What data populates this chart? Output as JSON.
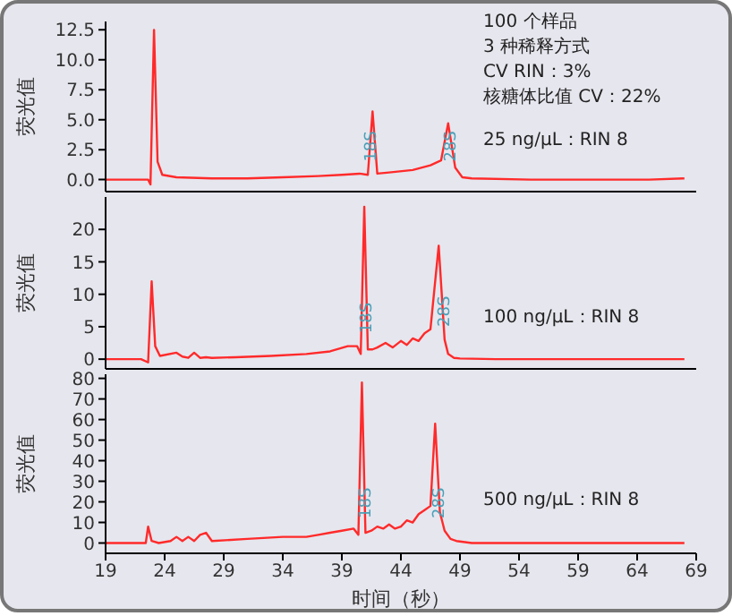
{
  "chart_data": [
    {
      "type": "line",
      "ylabel": "荧光值",
      "color": "#ff2a2a",
      "tick_labels": "y",
      "xlim": [
        19,
        69
      ],
      "xticks": [
        19,
        24,
        29,
        34,
        39,
        44,
        49,
        54,
        59,
        64,
        69
      ],
      "ylim": [
        -1,
        13.2
      ],
      "yticks": [
        {
          "value": 0,
          "label": "0.0"
        },
        2.5,
        {
          "value": 5,
          "label": "5.0"
        },
        7.5,
        {
          "value": 10,
          "label": "10.0"
        },
        12.5
      ],
      "x": [
        19,
        21,
        22.6,
        22.8,
        23.1,
        23.4,
        23.8,
        25,
        28,
        31,
        34,
        37,
        39,
        40.5,
        41.2,
        41.6,
        42,
        43,
        45,
        46.5,
        47.4,
        48,
        48.6,
        49.2,
        50,
        55,
        60,
        65,
        68
      ],
      "values": [
        0,
        0,
        0,
        -0.4,
        12.5,
        1.5,
        0.4,
        0.2,
        0.1,
        0.1,
        0.2,
        0.3,
        0.4,
        0.5,
        0.4,
        5.7,
        0.5,
        0.6,
        0.8,
        1.2,
        1.6,
        4.7,
        1.0,
        0.2,
        0.1,
        0,
        0,
        0,
        0.1
      ],
      "annotations": [
        "100 个样品",
        "3 种稀释方式",
        "CV RIN：3%",
        "核糖体比值 CV：22%",
        "25 ng/µL：RIN 8",
        {
          "text": "18S",
          "x": 41.9,
          "y": 1.5
        },
        {
          "text": "28S",
          "x": 48.6,
          "y": 1.5
        }
      ]
    },
    {
      "type": "line",
      "ylabel": "荧光值",
      "color": "#ff2a2a",
      "tick_labels": "y",
      "xlim": [
        19,
        69
      ],
      "xticks": [
        19,
        24,
        29,
        34,
        39,
        44,
        49,
        54,
        59,
        64,
        69
      ],
      "ylim": [
        -1.5,
        25
      ],
      "yticks": [
        0,
        5,
        10,
        15,
        20
      ],
      "x": [
        19,
        22,
        22.6,
        22.9,
        23.2,
        23.6,
        25,
        25.5,
        26,
        26.5,
        27,
        27.5,
        28,
        30,
        33,
        36,
        38,
        39.5,
        40.3,
        40.6,
        40.9,
        41.2,
        41.6,
        42,
        42.7,
        43.3,
        44,
        44.5,
        45,
        45.5,
        46,
        46.5,
        47.2,
        47.7,
        48,
        48.5,
        49,
        52,
        60,
        68
      ],
      "values": [
        0,
        0,
        -0.5,
        12,
        2,
        0.5,
        1,
        0.4,
        0.2,
        1,
        0.2,
        0.3,
        0.2,
        0.3,
        0.5,
        0.8,
        1.2,
        2,
        2,
        0.8,
        23.5,
        1.5,
        1.5,
        1.8,
        2.5,
        1.8,
        2.8,
        2.2,
        3.2,
        2.8,
        4,
        4.6,
        17.5,
        3,
        0.8,
        0.2,
        0.1,
        0,
        0,
        0
      ],
      "annotations": [
        "100 ng/µL：RIN 8",
        {
          "text": "18S",
          "x": 41.5,
          "y": 4
        },
        {
          "text": "28S",
          "x": 48.1,
          "y": 5
        }
      ]
    },
    {
      "type": "line",
      "ylabel": "荧光值",
      "xlabel": "时间（秒）",
      "color": "#ff2a2a",
      "xlim": [
        19,
        69
      ],
      "xticks": [
        19,
        24,
        29,
        34,
        39,
        44,
        49,
        54,
        59,
        64,
        69
      ],
      "ylim": [
        -5,
        82
      ],
      "yticks": [
        0,
        10,
        20,
        30,
        40,
        50,
        60,
        70,
        80
      ],
      "x": [
        19,
        22,
        22.4,
        22.6,
        22.9,
        23.5,
        24.5,
        25,
        25.5,
        26,
        26.5,
        27,
        27.5,
        28,
        31,
        34,
        36,
        37,
        38,
        39,
        40,
        40.4,
        40.7,
        41,
        41.5,
        42,
        42.5,
        43,
        43.5,
        44,
        44.5,
        45,
        45.5,
        46,
        46.5,
        46.9,
        47.3,
        47.7,
        48.2,
        48.7,
        50,
        55,
        60,
        68
      ],
      "values": [
        0,
        0,
        0,
        8,
        1,
        0,
        1,
        3,
        1,
        3,
        1,
        4,
        5,
        1,
        2,
        3,
        3,
        4,
        5,
        6,
        7,
        4,
        78,
        5,
        6,
        8,
        7,
        9,
        7,
        8,
        11,
        10,
        14,
        16,
        18,
        58,
        15,
        6,
        2,
        1,
        0,
        0,
        0,
        0
      ],
      "annotations": [
        "500 ng/µL：RIN 8",
        {
          "text": "18S",
          "x": 41.4,
          "y": 12
        },
        {
          "text": "28S",
          "x": 47.6,
          "y": 12
        }
      ]
    }
  ]
}
